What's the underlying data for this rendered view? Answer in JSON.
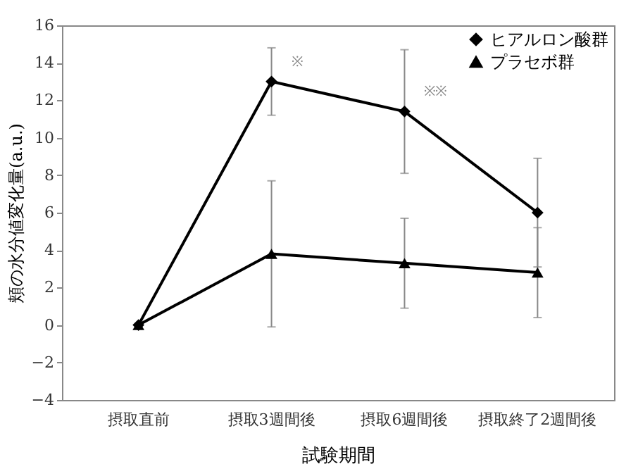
{
  "chart_data": {
    "type": "line",
    "xlabel": "試験期間",
    "ylabel": "頬の水分値変化量(a.u.)",
    "categories": [
      "摂取直前",
      "摂取3週間後",
      "摂取6週間後",
      "摂取終了2週間後"
    ],
    "series": [
      {
        "name": "ヒアルロン酸群",
        "color": "#000000",
        "marker": "diamond",
        "values": [
          0,
          13,
          11.4,
          6
        ],
        "errors": [
          null,
          1.8,
          3.3,
          2.9
        ]
      },
      {
        "name": "プラセボ群",
        "color": "#000000",
        "marker": "triangle",
        "values": [
          0,
          3.8,
          3.3,
          2.8
        ],
        "errors": [
          null,
          3.9,
          2.4,
          2.4
        ]
      }
    ],
    "ylim": [
      -4,
      16
    ],
    "yticks": [
      -4,
      -2,
      0,
      2,
      4,
      6,
      8,
      10,
      12,
      14,
      16
    ],
    "annotations": [
      {
        "text": "※",
        "x": "摂取3週間後",
        "y": 13
      },
      {
        "text": "※※",
        "x": "摂取6週間後",
        "y": 11.4
      }
    ],
    "legend": "top right",
    "grid": false,
    "line_style": "solid"
  }
}
